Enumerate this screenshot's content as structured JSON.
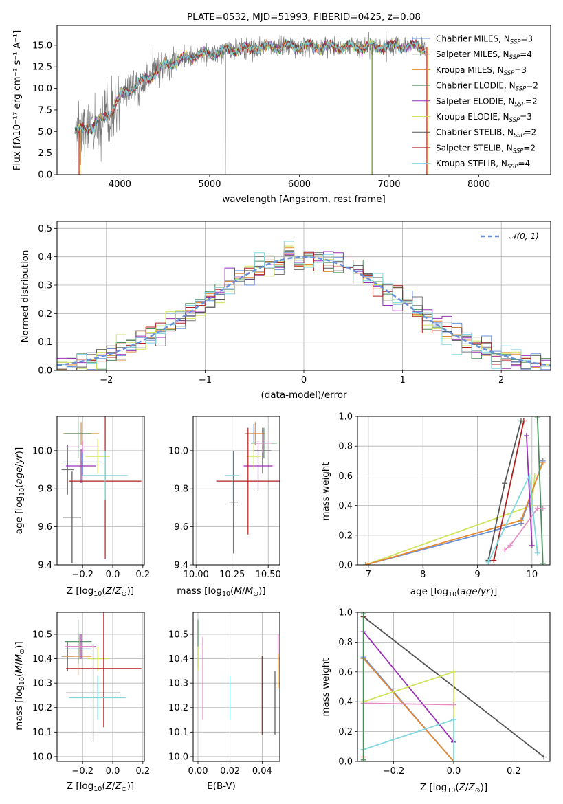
{
  "colors": {
    "chabrier_miles": "#6a8fd9",
    "salpeter_miles": "#777777",
    "kroupa_miles": "#e68a2e",
    "chabrier_elodie": "#4c8c5c",
    "salpeter_elodie": "#9a2fb8",
    "kroupa_elodie": "#cfe35a",
    "chabrier_stelib": "#555555",
    "salpeter_stelib": "#b01f1f",
    "kroupa_stelib": "#7fd7e0",
    "pink": "#e58ac2",
    "grid": "#b0b0b0"
  },
  "chart_data": [
    {
      "id": "spectrum",
      "type": "line",
      "title": "PLATE=0532, MJD=51993, FIBERID=0425, z=0.08",
      "xlabel": "wavelength [Angstrom, rest frame]",
      "ylabel": "Flux [fλ10⁻¹⁷ erg cm⁻² s⁻¹ A⁻¹]",
      "xlim": [
        3300,
        8800
      ],
      "ylim": [
        0,
        17.3
      ],
      "xticks": [
        4000,
        5000,
        6000,
        7000,
        8000
      ],
      "yticks": [
        "0.0",
        "2.5",
        "5.0",
        "7.5",
        "10.0",
        "12.5",
        "15.0"
      ],
      "legend_position": "upper-right",
      "series": [
        {
          "name": "Chabrier MILES, N_SSP=3",
          "name_main": "Chabrier MILES, N",
          "name_sub": "SSP",
          "name_tail": "=3",
          "color": "#6a8fd9"
        },
        {
          "name": "Salpeter MILES, N_SSP=4",
          "name_main": "Salpeter MILES, N",
          "name_sub": "SSP",
          "name_tail": "=4",
          "color": "#777777"
        },
        {
          "name": "Kroupa MILES, N_SSP=3",
          "name_main": "Kroupa MILES, N",
          "name_sub": "SSP",
          "name_tail": "=3",
          "color": "#e68a2e"
        },
        {
          "name": "Chabrier ELODIE, N_SSP=2",
          "name_main": "Chabrier ELODIE, N",
          "name_sub": "SSP",
          "name_tail": "=2",
          "color": "#4c8c5c"
        },
        {
          "name": "Salpeter ELODIE, N_SSP=2",
          "name_main": "Salpeter ELODIE, N",
          "name_sub": "SSP",
          "name_tail": "=2",
          "color": "#9a2fb8"
        },
        {
          "name": "Kroupa ELODIE, N_SSP=3",
          "name_main": "Kroupa ELODIE, N",
          "name_sub": "SSP",
          "name_tail": "=3",
          "color": "#cfe35a"
        },
        {
          "name": "Chabrier STELIB, N_SSP=2",
          "name_main": "Chabrier STELIB, N",
          "name_sub": "SSP",
          "name_tail": "=2",
          "color": "#555555"
        },
        {
          "name": "Salpeter STELIB, N_SSP=2",
          "name_main": "Salpeter STELIB, N",
          "name_sub": "SSP",
          "name_tail": "=2",
          "color": "#b01f1f"
        },
        {
          "name": "Kroupa STELIB, N_SSP=4",
          "name_main": "Kroupa STELIB, N",
          "name_sub": "SSP",
          "name_tail": "=4",
          "color": "#7fd7e0"
        }
      ],
      "continuum_knots": [
        [
          3500,
          5.0
        ],
        [
          3700,
          5.6
        ],
        [
          3900,
          7.3
        ],
        [
          4050,
          9.6
        ],
        [
          4200,
          10.4
        ],
        [
          4500,
          12.6
        ],
        [
          4800,
          13.8
        ],
        [
          5000,
          14.0
        ],
        [
          5300,
          14.5
        ],
        [
          5600,
          14.8
        ],
        [
          6000,
          14.9
        ],
        [
          6300,
          14.8
        ],
        [
          6600,
          14.8
        ],
        [
          7000,
          14.9
        ],
        [
          7400,
          14.8
        ]
      ],
      "data_extent": [
        3500,
        7400
      ]
    },
    {
      "id": "residual-histogram",
      "type": "bar",
      "xlabel": "(data-model)/error",
      "ylabel": "Normed distribution",
      "xlim": [
        -2.5,
        2.5
      ],
      "ylim": [
        0,
        0.525
      ],
      "xticks": [
        "−2",
        "−1",
        "0",
        "1",
        "2"
      ],
      "yticks": [
        "0.0",
        "0.1",
        "0.2",
        "0.3",
        "0.4",
        "0.5"
      ],
      "legend_position": "upper-right",
      "reference_curve": "𝒩(0, 1)",
      "bin_width": 0.1,
      "note_values": "histograms of the nine fits following the N(0,1) curve"
    },
    {
      "id": "age-metallicity",
      "type": "scatter",
      "xlabel": "Z [log10(Z/Z☉)]",
      "ylabel": "age [log10(age/yr)]",
      "xlim": [
        -0.37,
        0.21
      ],
      "ylim": [
        9.4,
        10.18
      ],
      "xticks": [
        "−0.2",
        "0.0",
        "0.2"
      ],
      "yticks": [
        "9.4",
        "9.6",
        "9.8",
        "10.0"
      ],
      "points": [
        {
          "color": "#6a8fd9",
          "x": -0.2,
          "y": 9.94,
          "xerr": 0.13,
          "yerr": 0.07
        },
        {
          "color": "#777777",
          "x": -0.3,
          "y": 9.9,
          "xerr": 0.04,
          "yerr": 0.13
        },
        {
          "color": "#e68a2e",
          "x": -0.21,
          "y": 10.09,
          "xerr": 0.12,
          "yerr": 0.06
        },
        {
          "color": "#4c8c5c",
          "x": -0.23,
          "y": 10.09,
          "xerr": 0.09,
          "yerr": 0.13
        },
        {
          "color": "#9a2fb8",
          "x": -0.21,
          "y": 9.92,
          "xerr": 0.1,
          "yerr": 0.09
        },
        {
          "color": "#cfe35a",
          "x": -0.1,
          "y": 9.97,
          "xerr": 0.08,
          "yerr": 0.09
        },
        {
          "color": "#555555",
          "x": -0.27,
          "y": 9.65,
          "xerr": 0.06,
          "yerr": 0.24
        },
        {
          "color": "#b01f1f",
          "x": -0.05,
          "y": 9.84,
          "xerr": 0.24,
          "yerr": 0.41
        },
        {
          "color": "#7fd7e0",
          "x": -0.05,
          "y": 9.87,
          "xerr": 0.15,
          "yerr": 0.13
        },
        {
          "color": "#e58ac2",
          "x": -0.2,
          "y": 10.02,
          "xerr": 0.11,
          "yerr": 0.03
        }
      ]
    },
    {
      "id": "age-mass",
      "type": "scatter",
      "xlabel": "mass [log10(M/M☉)]",
      "ylabel": "",
      "xlim": [
        9.98,
        10.58
      ],
      "ylim": [
        9.4,
        10.18
      ],
      "xticks": [
        "10.00",
        "10.25",
        "10.50"
      ],
      "yticks": [
        "9.4",
        "9.6",
        "9.8",
        "10.0"
      ],
      "points": [
        {
          "color": "#6a8fd9",
          "x": 10.4,
          "y": 10.09,
          "xerr": 0.06,
          "yerr": 0.05
        },
        {
          "color": "#777777",
          "x": 10.46,
          "y": 10.0,
          "xerr": 0.06,
          "yerr": 0.12
        },
        {
          "color": "#e68a2e",
          "x": 10.41,
          "y": 10.09,
          "xerr": 0.07,
          "yerr": 0.06
        },
        {
          "color": "#4c8c5c",
          "x": 10.47,
          "y": 10.04,
          "xerr": 0.09,
          "yerr": 0.08
        },
        {
          "color": "#9a2fb8",
          "x": 10.43,
          "y": 9.92,
          "xerr": 0.1,
          "yerr": 0.13
        },
        {
          "color": "#cfe35a",
          "x": 10.4,
          "y": 9.97,
          "xerr": 0.05,
          "yerr": 0.07
        },
        {
          "color": "#555555",
          "x": 10.26,
          "y": 9.73,
          "xerr": 0.03,
          "yerr": 0.27
        },
        {
          "color": "#b01f1f",
          "x": 10.36,
          "y": 9.84,
          "xerr": 0.22,
          "yerr": 0.28
        },
        {
          "color": "#7fd7e0",
          "x": 10.25,
          "y": 9.87,
          "xerr": 0.05,
          "yerr": 0.13
        },
        {
          "color": "#e58ac2",
          "x": 10.46,
          "y": 10.04,
          "xerr": 0.06,
          "yerr": 0.05
        }
      ]
    },
    {
      "id": "mass-weight-age",
      "type": "line",
      "xlabel": "age [log10(age/yr)]",
      "ylabel": "mass weight",
      "xlim": [
        6.8,
        10.33
      ],
      "ylim": [
        0,
        1.0
      ],
      "xticks": [
        "7",
        "8",
        "9",
        "10"
      ],
      "yticks": [
        "0.0",
        "0.2",
        "0.4",
        "0.6",
        "0.8",
        "1.0"
      ],
      "series": [
        {
          "color": "#cfe35a",
          "points": [
            [
              6.95,
              0.0
            ],
            [
              10.0,
              0.4
            ],
            [
              10.05,
              0.6
            ]
          ]
        },
        {
          "color": "#6a8fd9",
          "points": [
            [
              6.95,
              0.0
            ],
            [
              9.8,
              0.28
            ],
            [
              10.2,
              0.7
            ]
          ]
        },
        {
          "color": "#e68a2e",
          "points": [
            [
              6.95,
              0.0
            ],
            [
              9.8,
              0.3
            ],
            [
              10.2,
              0.69
            ]
          ]
        },
        {
          "color": "#555555",
          "points": [
            [
              9.2,
              0.03
            ],
            [
              9.5,
              0.55
            ],
            [
              9.8,
              0.97
            ]
          ]
        },
        {
          "color": "#b01f1f",
          "points": [
            [
              9.3,
              0.03
            ],
            [
              9.85,
              0.97
            ]
          ]
        },
        {
          "color": "#4c8c5c",
          "points": [
            [
              10.1,
              0.99
            ],
            [
              10.2,
              0.01
            ]
          ]
        },
        {
          "color": "#9a2fb8",
          "points": [
            [
              9.9,
              0.87
            ],
            [
              10.0,
              0.13
            ]
          ]
        },
        {
          "color": "#e58ac2",
          "points": [
            [
              9.5,
              0.1
            ],
            [
              9.6,
              0.13
            ],
            [
              10.1,
              0.38
            ],
            [
              10.2,
              0.38
            ]
          ]
        },
        {
          "color": "#7fd7e0",
          "points": [
            [
              9.2,
              0.02
            ],
            [
              9.95,
              0.6
            ],
            [
              10.1,
              0.08
            ]
          ]
        }
      ]
    },
    {
      "id": "mass-metallicity",
      "type": "scatter",
      "xlabel": "Z [log10(Z/Z☉)]",
      "ylabel": "mass [log10(M/M☉)]",
      "xlim": [
        -0.37,
        0.21
      ],
      "ylim": [
        9.98,
        10.59
      ],
      "xticks": [
        "−0.2",
        "0.0",
        "0.2"
      ],
      "yticks": [
        "10.0",
        "10.1",
        "10.2",
        "10.3",
        "10.4",
        "10.5"
      ],
      "points": [
        {
          "color": "#6a8fd9",
          "x": -0.23,
          "y": 10.44,
          "xerr": 0.09,
          "yerr": 0.06
        },
        {
          "color": "#777777",
          "x": -0.3,
          "y": 10.41,
          "xerr": 0.04,
          "yerr": 0.06
        },
        {
          "color": "#e68a2e",
          "x": -0.23,
          "y": 10.41,
          "xerr": 0.09,
          "yerr": 0.08
        },
        {
          "color": "#4c8c5c",
          "x": -0.23,
          "y": 10.47,
          "xerr": 0.09,
          "yerr": 0.09
        },
        {
          "color": "#9a2fb8",
          "x": -0.21,
          "y": 10.45,
          "xerr": 0.1,
          "yerr": 0.05
        },
        {
          "color": "#cfe35a",
          "x": -0.1,
          "y": 10.4,
          "xerr": 0.07,
          "yerr": 0.05
        },
        {
          "color": "#555555",
          "x": -0.13,
          "y": 10.26,
          "xerr": 0.18,
          "yerr": 0.2
        },
        {
          "color": "#b01f1f",
          "x": -0.06,
          "y": 10.36,
          "xerr": 0.25,
          "yerr": 0.24
        },
        {
          "color": "#7fd7e0",
          "x": -0.1,
          "y": 10.24,
          "xerr": 0.19,
          "yerr": 0.09
        },
        {
          "color": "#e58ac2",
          "x": -0.22,
          "y": 10.45,
          "xerr": 0.1,
          "yerr": 0.05
        }
      ]
    },
    {
      "id": "mass-extinction",
      "type": "scatter",
      "xlabel": "E(B-V)",
      "ylabel": "",
      "xlim": [
        -0.003,
        0.051
      ],
      "ylim": [
        9.98,
        10.59
      ],
      "xticks": [
        "0.00",
        "0.02",
        "0.04"
      ],
      "yticks": [
        "10.0",
        "10.1",
        "10.2",
        "10.3",
        "10.4",
        "10.5"
      ],
      "points": [
        {
          "color": "#4c8c5c",
          "x": 0.0,
          "y": 10.46,
          "xerr": 0,
          "yerr": 0.1
        },
        {
          "color": "#cfe35a",
          "x": 0.0,
          "y": 10.4,
          "xerr": 0,
          "yerr": 0.05
        },
        {
          "color": "#e58ac2",
          "x": 0.003,
          "y": 10.32,
          "xerr": 0,
          "yerr": 0.17
        },
        {
          "color": "#7fd7e0",
          "x": 0.02,
          "y": 10.24,
          "xerr": 0,
          "yerr": 0.09
        },
        {
          "color": "#b01f1f",
          "x": 0.04,
          "y": 10.25,
          "xerr": 0,
          "yerr": 0.16
        },
        {
          "color": "#555555",
          "x": 0.048,
          "y": 10.22,
          "xerr": 0,
          "yerr": 0.13
        },
        {
          "color": "#e58ac2",
          "x": 0.05,
          "y": 10.43,
          "xerr": 0,
          "yerr": 0.07
        },
        {
          "color": "#e68a2e",
          "x": 0.05,
          "y": 10.35,
          "xerr": 0,
          "yerr": 0.07
        }
      ]
    },
    {
      "id": "mass-weight-metallicity",
      "type": "line",
      "xlabel": "Z [log10(Z/Z☉)]",
      "ylabel": "mass weight",
      "xlim": [
        -0.32,
        0.32
      ],
      "ylim": [
        0,
        1.0
      ],
      "xticks": [
        "−0.2",
        "0.0",
        "0.2"
      ],
      "yticks": [
        "0.0",
        "0.2",
        "0.4",
        "0.6",
        "0.8",
        "1.0"
      ],
      "series": [
        {
          "color": "#555555",
          "points": [
            [
              -0.3,
              0.97
            ],
            [
              0.3,
              0.03
            ]
          ]
        },
        {
          "color": "#9a2fb8",
          "points": [
            [
              -0.3,
              0.87
            ],
            [
              0.0,
              0.13
            ]
          ]
        },
        {
          "color": "#6a8fd9",
          "points": [
            [
              -0.3,
              0.7
            ],
            [
              0.0,
              0.0
            ]
          ]
        },
        {
          "color": "#e68a2e",
          "points": [
            [
              -0.3,
              0.69
            ],
            [
              0.0,
              0.0
            ]
          ]
        },
        {
          "color": "#cfe35a",
          "points": [
            [
              -0.3,
              0.4
            ],
            [
              0.0,
              0.6
            ],
            [
              0.0,
              0.0
            ]
          ]
        },
        {
          "color": "#e58ac2",
          "points": [
            [
              -0.3,
              0.39
            ],
            [
              0.0,
              0.38
            ]
          ]
        },
        {
          "color": "#7fd7e0",
          "points": [
            [
              -0.3,
              0.08
            ],
            [
              0.0,
              0.28
            ],
            [
              0.0,
              0.0
            ]
          ]
        },
        {
          "color": "#b01f1f",
          "points": [
            [
              -0.3,
              0.97
            ],
            [
              -0.3,
              0.03
            ]
          ]
        },
        {
          "color": "#4c8c5c",
          "points": [
            [
              -0.3,
              0.99
            ],
            [
              -0.3,
              0.01
            ]
          ]
        }
      ]
    }
  ]
}
